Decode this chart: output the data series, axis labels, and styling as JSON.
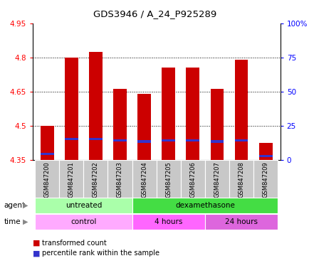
{
  "title": "GDS3946 / A_24_P925289",
  "samples": [
    "GSM847200",
    "GSM847201",
    "GSM847202",
    "GSM847203",
    "GSM847204",
    "GSM847205",
    "GSM847206",
    "GSM847207",
    "GSM847208",
    "GSM847209"
  ],
  "bar_values": [
    4.5,
    4.8,
    4.825,
    4.66,
    4.64,
    4.755,
    4.755,
    4.66,
    4.79,
    4.425
  ],
  "percentile_values": [
    4.375,
    4.44,
    4.44,
    4.435,
    4.43,
    4.435,
    4.435,
    4.43,
    4.435,
    4.365
  ],
  "ymin": 4.35,
  "ymax": 4.95,
  "yticks": [
    4.35,
    4.5,
    4.65,
    4.8,
    4.95
  ],
  "right_ytick_labels": [
    "0",
    "25",
    "50",
    "75",
    "100%"
  ],
  "bar_color": "#cc0000",
  "percentile_color": "#3333cc",
  "agent_groups": [
    {
      "label": "untreated",
      "start": 0,
      "end": 4,
      "color": "#aaffaa"
    },
    {
      "label": "dexamethasone",
      "start": 4,
      "end": 10,
      "color": "#44dd44"
    }
  ],
  "time_groups": [
    {
      "label": "control",
      "start": 0,
      "end": 4,
      "color": "#ffaaff"
    },
    {
      "label": "4 hours",
      "start": 4,
      "end": 7,
      "color": "#ff66ff"
    },
    {
      "label": "24 hours",
      "start": 7,
      "end": 10,
      "color": "#dd66dd"
    }
  ],
  "legend_items": [
    {
      "label": "transformed count",
      "color": "#cc0000"
    },
    {
      "label": "percentile rank within the sample",
      "color": "#3333cc"
    }
  ],
  "bar_width": 0.55,
  "bg_color": "#ffffff",
  "xlabels_bg": "#c8c8c8"
}
